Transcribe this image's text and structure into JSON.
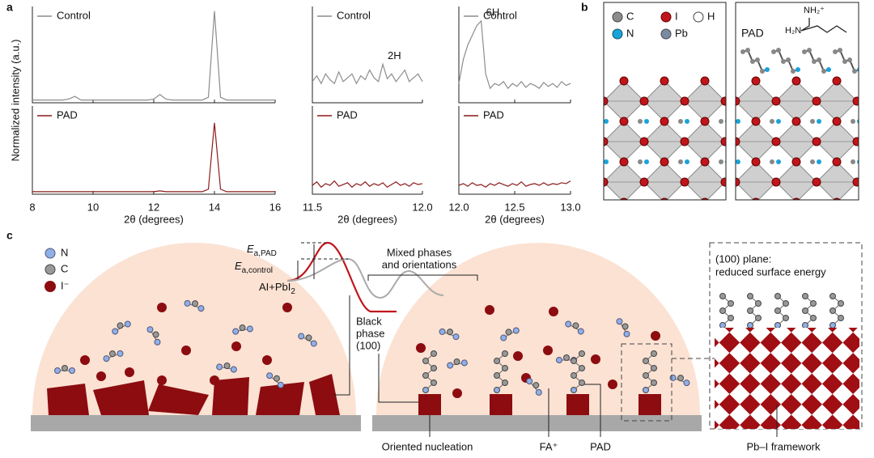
{
  "panel_labels": [
    "a",
    "b",
    "c"
  ],
  "chart_data": [
    {
      "type": "line",
      "ylabel": "Normalized intensity (a.u.)",
      "xlabel": "2θ (degrees)",
      "x": [
        8,
        8.2,
        8.4,
        8.6,
        8.8,
        9,
        9.2,
        9.4,
        9.6,
        9.8,
        10,
        10.2,
        10.4,
        10.6,
        10.8,
        11,
        11.2,
        11.4,
        11.6,
        11.8,
        12,
        12.2,
        12.4,
        12.6,
        12.8,
        13,
        13.2,
        13.4,
        13.6,
        13.8,
        14,
        14.2,
        14.4,
        14.6,
        14.8,
        15,
        15.2,
        15.4,
        15.6,
        15.8,
        16
      ],
      "xlim": [
        8,
        16
      ],
      "xticks": [
        8,
        10,
        12,
        14,
        16
      ],
      "ylim": [
        0,
        1.05
      ],
      "series": [
        {
          "name": "Control",
          "color": "#8c8c8c",
          "values": [
            0.03,
            0.03,
            0.03,
            0.03,
            0.03,
            0.03,
            0.04,
            0.07,
            0.03,
            0.03,
            0.03,
            0.03,
            0.03,
            0.03,
            0.03,
            0.03,
            0.03,
            0.03,
            0.03,
            0.03,
            0.04,
            0.09,
            0.04,
            0.03,
            0.03,
            0.03,
            0.03,
            0.03,
            0.03,
            0.06,
            1.0,
            0.06,
            0.03,
            0.03,
            0.03,
            0.03,
            0.03,
            0.03,
            0.03,
            0.03,
            0.03
          ]
        },
        {
          "name": "PAD",
          "color": "#8b1a1a",
          "values": [
            0.03,
            0.03,
            0.03,
            0.03,
            0.03,
            0.03,
            0.03,
            0.03,
            0.03,
            0.03,
            0.03,
            0.03,
            0.03,
            0.03,
            0.03,
            0.03,
            0.03,
            0.03,
            0.03,
            0.03,
            0.03,
            0.04,
            0.03,
            0.03,
            0.03,
            0.03,
            0.03,
            0.03,
            0.03,
            0.06,
            0.85,
            0.06,
            0.03,
            0.03,
            0.03,
            0.03,
            0.03,
            0.03,
            0.03,
            0.03,
            0.03
          ]
        }
      ]
    },
    {
      "type": "line",
      "xlabel": "2θ (degrees)",
      "annotation": "2H",
      "x": [
        11.5,
        11.52,
        11.54,
        11.56,
        11.58,
        11.6,
        11.62,
        11.64,
        11.66,
        11.68,
        11.7,
        11.72,
        11.74,
        11.76,
        11.78,
        11.8,
        11.82,
        11.84,
        11.86,
        11.88,
        11.9,
        11.92,
        11.94,
        11.96,
        11.98,
        12.0
      ],
      "xlim": [
        11.5,
        12.0
      ],
      "xticks": [
        11.5,
        {
          "value": 12,
          "label": "12.0"
        }
      ],
      "ylim": [
        0,
        1
      ],
      "series": [
        {
          "name": "Control",
          "color": "#8c8c8c",
          "values": [
            0.22,
            0.28,
            0.2,
            0.3,
            0.24,
            0.2,
            0.32,
            0.22,
            0.26,
            0.3,
            0.2,
            0.28,
            0.24,
            0.34,
            0.26,
            0.22,
            0.4,
            0.25,
            0.3,
            0.22,
            0.28,
            0.34,
            0.22,
            0.26,
            0.3,
            0.22
          ]
        },
        {
          "name": "PAD",
          "color": "#8b1a1a",
          "values": [
            0.1,
            0.14,
            0.08,
            0.12,
            0.1,
            0.15,
            0.09,
            0.11,
            0.13,
            0.08,
            0.12,
            0.1,
            0.14,
            0.09,
            0.12,
            0.1,
            0.13,
            0.08,
            0.11,
            0.14,
            0.1,
            0.12,
            0.09,
            0.13,
            0.11,
            0.12
          ]
        }
      ]
    },
    {
      "type": "line",
      "xlabel": "2θ (degrees)",
      "annotation": "6H",
      "x": [
        12.0,
        12.04,
        12.08,
        12.12,
        12.16,
        12.2,
        12.24,
        12.28,
        12.32,
        12.36,
        12.4,
        12.44,
        12.48,
        12.52,
        12.56,
        12.6,
        12.64,
        12.68,
        12.72,
        12.76,
        12.8,
        12.84,
        12.88,
        12.92,
        12.96,
        13.0
      ],
      "xlim": [
        12,
        13
      ],
      "xticks": [
        {
          "value": 12,
          "label": "12.0"
        },
        12.5,
        {
          "value": 13,
          "label": "13.0"
        }
      ],
      "ylim": [
        0,
        1
      ],
      "series": [
        {
          "name": "Control",
          "color": "#8c8c8c",
          "values": [
            0.2,
            0.45,
            0.6,
            0.7,
            0.8,
            0.85,
            0.3,
            0.15,
            0.2,
            0.18,
            0.22,
            0.15,
            0.2,
            0.17,
            0.22,
            0.16,
            0.2,
            0.18,
            0.15,
            0.21,
            0.17,
            0.2,
            0.16,
            0.22,
            0.18,
            0.2
          ]
        },
        {
          "name": "PAD",
          "color": "#8b1a1a",
          "values": [
            0.1,
            0.12,
            0.09,
            0.13,
            0.1,
            0.11,
            0.08,
            0.12,
            0.1,
            0.13,
            0.11,
            0.09,
            0.12,
            0.1,
            0.14,
            0.09,
            0.11,
            0.12,
            0.1,
            0.13,
            0.1,
            0.12,
            0.11,
            0.13,
            0.12,
            0.15
          ]
        }
      ]
    }
  ],
  "panel_b": {
    "legend": [
      "C",
      "I",
      "H",
      "N",
      "Pb"
    ],
    "label": "PAD",
    "formula_top": "NH₂⁺",
    "formula_left": "H₂N"
  },
  "panel_c": {
    "legend": [
      "N",
      "C",
      "I⁻"
    ],
    "energy_pad": {
      "symbol": "E",
      "subscript": "a,PAD"
    },
    "energy_control": {
      "symbol": "E",
      "subscript": "a,control"
    },
    "reactants": {
      "text": "AI+PbI",
      "subscript": "2"
    },
    "mixed": [
      "Mixed phases",
      "and orientations"
    ],
    "black": [
      "Black",
      "phase",
      "(100)"
    ],
    "plane": [
      "(100) plane:",
      "reduced surface energy"
    ],
    "labels": {
      "nucleation": "Oriented nucleation",
      "fa": "FA⁺",
      "pad": "PAD",
      "framework": "Pb–I framework"
    }
  }
}
